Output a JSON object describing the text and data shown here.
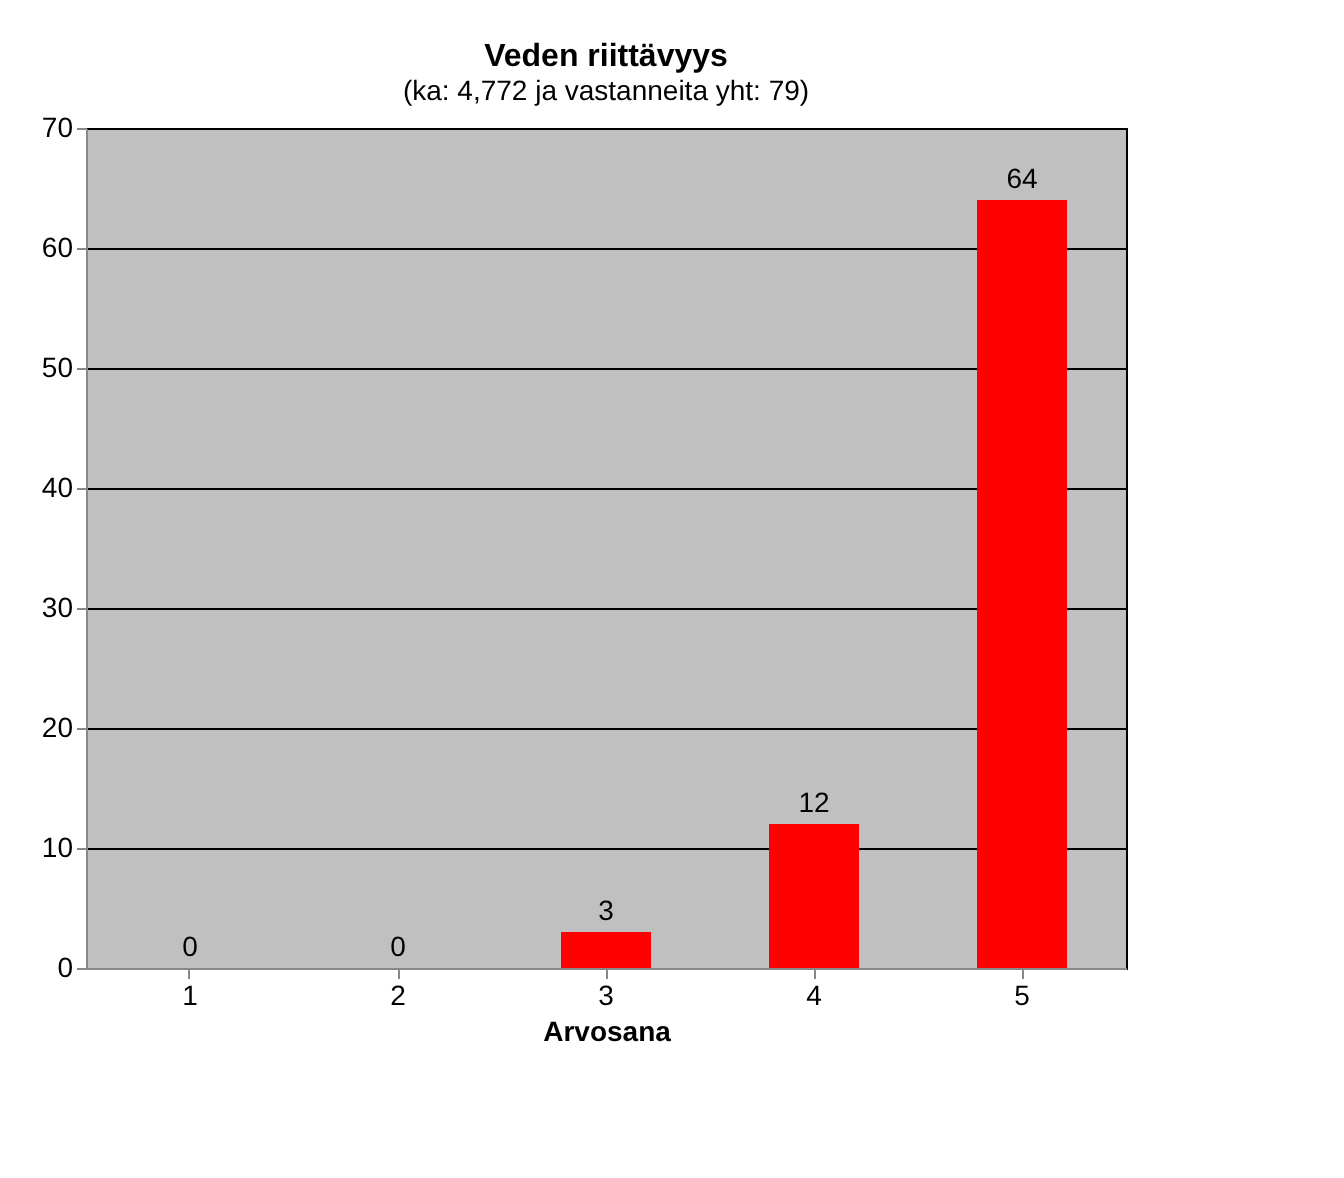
{
  "chart_data": {
    "type": "bar",
    "title": "Veden riittävyys",
    "subtitle": "(ka: 4,772 ja vastanneita yht: 79)",
    "xlabel": "Arvosana",
    "categories": [
      "1",
      "2",
      "3",
      "4",
      "5"
    ],
    "values": [
      0,
      0,
      3,
      12,
      64
    ],
    "color": "#ff0000",
    "ylim": [
      0,
      70
    ],
    "yticks": [
      0,
      10,
      20,
      30,
      40,
      50,
      60,
      70
    ],
    "grid": "y",
    "data_labels": true
  }
}
